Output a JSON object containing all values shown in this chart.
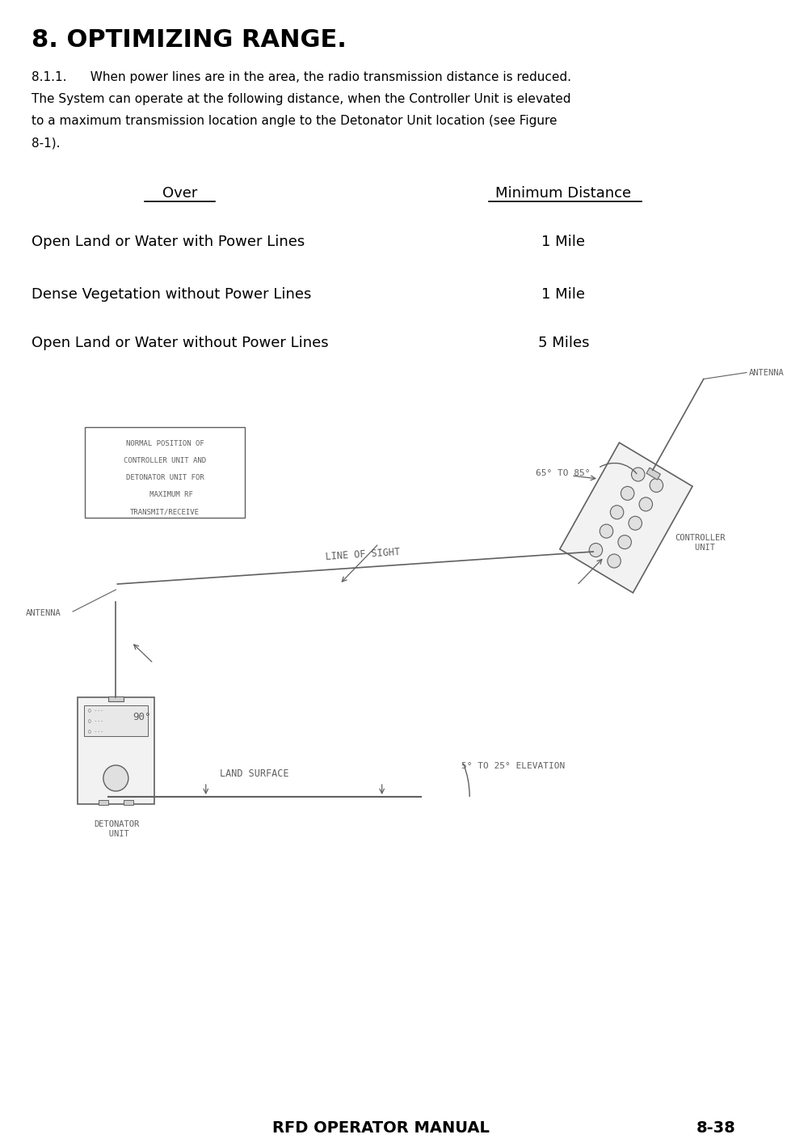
{
  "title": "8. OPTIMIZING RANGE.",
  "body_lines": [
    "8.1.1.      When power lines are in the area, the radio transmission distance is reduced.",
    "The System can operate at the following distance, when the Controller Unit is elevated",
    "to a maximum transmission location angle to the Detonator Unit location (see Figure",
    "8-1)."
  ],
  "col1_header": "Over",
  "col2_header": "Minimum Distance",
  "rows": [
    [
      "Open Land or Water with Power Lines",
      "1 Mile"
    ],
    [
      "Dense Vegetation without Power Lines",
      "1 Mile"
    ],
    [
      "Open Land or Water without Power Lines",
      "5 Miles"
    ]
  ],
  "footer_left": "RFD OPERATOR MANUAL",
  "footer_right": "8-38",
  "bg_color": "#ffffff",
  "text_color": "#000000",
  "dgray": "#606060",
  "box_label_lines": [
    "NORMAL POSITION OF",
    "CONTROLLER UNIT AND",
    "DETONATOR UNIT FOR",
    "   MAXIMUM RF",
    "TRANSMIT/RECEIVE"
  ]
}
